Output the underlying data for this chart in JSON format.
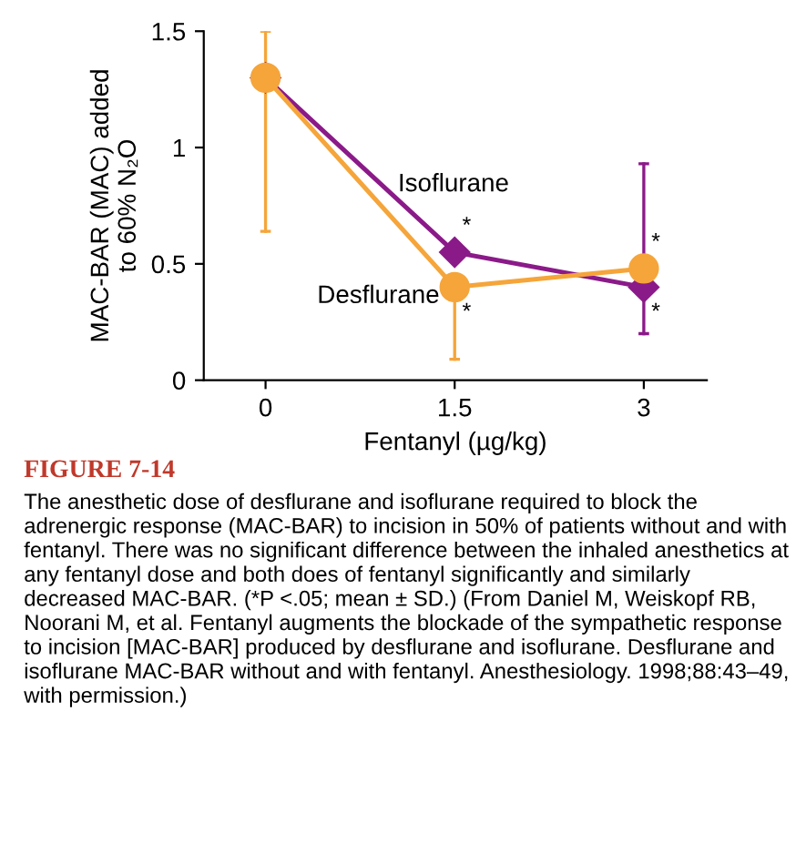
{
  "chart_data": {
    "type": "line",
    "xlabel": "Fentanyl (µg/kg)",
    "ylabel": "MAC-BAR (MAC) added\nto 60% N₂O",
    "x": [
      0,
      1.5,
      3
    ],
    "xlim": [
      -0.49,
      3.5
    ],
    "xticks": [
      0,
      1.5,
      3
    ],
    "ylim": [
      0,
      1.5
    ],
    "yticks": [
      0,
      0.5,
      1,
      1.5
    ],
    "grid": false,
    "legend": false,
    "series": [
      {
        "name": "Desflurane",
        "color": "#f5a53a",
        "marker": "circle",
        "values": [
          1.3,
          0.4,
          0.48
        ],
        "errors": [
          [
            0.64,
            1.5
          ],
          [
            0.09,
            0.4
          ],
          null
        ]
      },
      {
        "name": "Isoflurane",
        "color": "#8b1a89",
        "marker": "diamond",
        "values": [
          1.3,
          0.55,
          0.4
        ],
        "errors": [
          null,
          null,
          [
            0.2,
            0.93
          ]
        ]
      }
    ],
    "annotations": [
      "*",
      "*",
      "*",
      "*",
      "FIGURE 7-14",
      "The anesthetic dose of desflurane and isoflurane required to block the adrenergic response (MAC-BAR) to incision in 50% of patients without and with fentanyl. There was no significant difference between the inhaled anesthetics at any fentanyl dose and both does of fentanyl significantly and similarly decreased MAC-BAR. (*P <.05; mean ± SD.) (From Daniel M, Weiskopf RB, Noorani M, et al. Fentanyl augments the blockade of the sympathetic response to incision [MAC-BAR] produced by desflurane and isoflurane. Desflurane and isoflurane MAC-BAR without and with fentanyl. Anesthesiology. 1998;88:43–49, with permission.)"
    ]
  }
}
